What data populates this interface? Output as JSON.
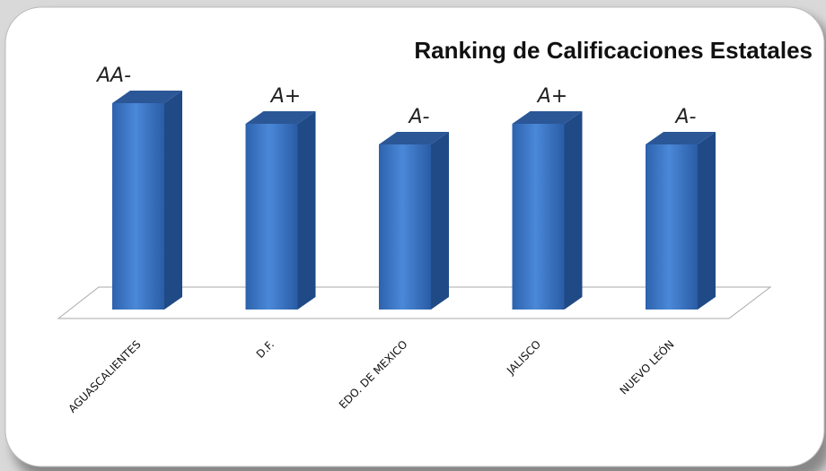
{
  "chart_data": {
    "type": "bar3d",
    "title": "Ranking de Calificaciones Estatales",
    "categories": [
      "AGUASCALIENTES",
      "D.F.",
      "EDO. DE MEXICO",
      "JALISCO",
      "NUEVO LEÓN"
    ],
    "values": [
      10,
      9,
      8,
      9,
      8
    ],
    "value_labels": [
      "AA-",
      "A+",
      "A-",
      "A+",
      "A-"
    ],
    "color": "#3a78c9"
  }
}
